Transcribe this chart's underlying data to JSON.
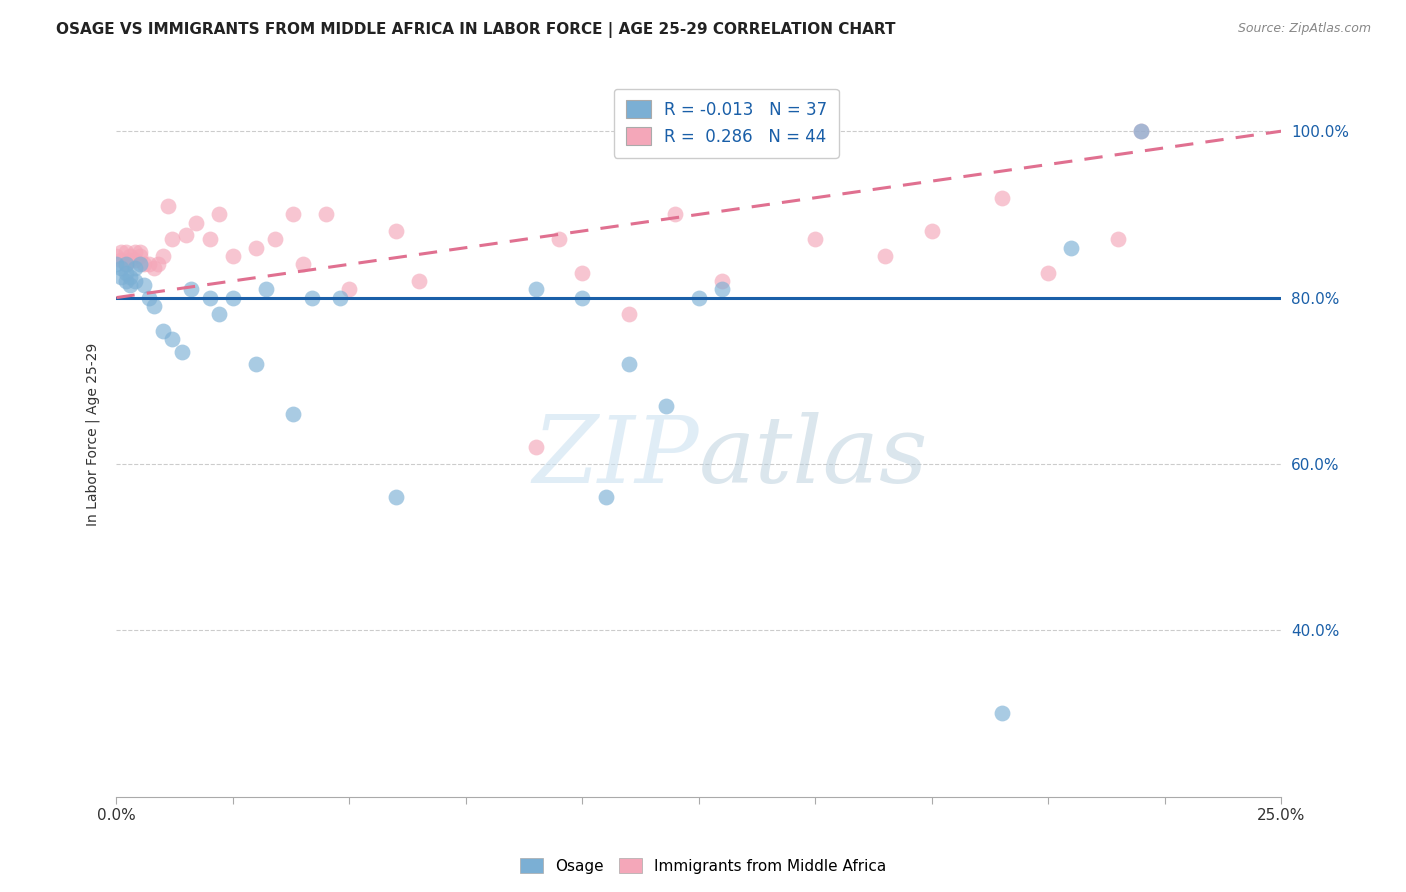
{
  "title": "OSAGE VS IMMIGRANTS FROM MIDDLE AFRICA IN LABOR FORCE | AGE 25-29 CORRELATION CHART",
  "source": "Source: ZipAtlas.com",
  "ylabel": "In Labor Force | Age 25-29",
  "xlim": [
    0.0,
    0.25
  ],
  "ylim": [
    0.2,
    1.07
  ],
  "legend_r_blue": "-0.013",
  "legend_n_blue": "37",
  "legend_r_pink": "0.286",
  "legend_n_pink": "44",
  "blue_color": "#7bafd4",
  "pink_color": "#f4a7b9",
  "line_blue_color": "#1a5fa8",
  "line_pink_color": "#e07090",
  "osage_x": [
    0.0,
    0.001,
    0.001,
    0.002,
    0.002,
    0.002,
    0.003,
    0.003,
    0.004,
    0.004,
    0.005,
    0.006,
    0.007,
    0.008,
    0.01,
    0.012,
    0.014,
    0.016,
    0.02,
    0.022,
    0.025,
    0.03,
    0.032,
    0.038,
    0.042,
    0.048,
    0.06,
    0.09,
    0.1,
    0.105,
    0.11,
    0.118,
    0.125,
    0.13,
    0.19,
    0.205,
    0.22
  ],
  "osage_y": [
    0.84,
    0.835,
    0.825,
    0.83,
    0.82,
    0.84,
    0.825,
    0.815,
    0.835,
    0.82,
    0.84,
    0.815,
    0.8,
    0.79,
    0.76,
    0.75,
    0.735,
    0.81,
    0.8,
    0.78,
    0.8,
    0.72,
    0.81,
    0.66,
    0.8,
    0.8,
    0.56,
    0.81,
    0.8,
    0.56,
    0.72,
    0.67,
    0.8,
    0.81,
    0.3,
    0.86,
    1.0
  ],
  "africa_x": [
    0.0,
    0.001,
    0.001,
    0.002,
    0.002,
    0.003,
    0.003,
    0.004,
    0.004,
    0.005,
    0.005,
    0.006,
    0.007,
    0.008,
    0.009,
    0.01,
    0.011,
    0.012,
    0.015,
    0.017,
    0.02,
    0.022,
    0.025,
    0.03,
    0.034,
    0.038,
    0.04,
    0.045,
    0.05,
    0.06,
    0.065,
    0.09,
    0.095,
    0.1,
    0.11,
    0.12,
    0.13,
    0.15,
    0.165,
    0.175,
    0.19,
    0.2,
    0.215,
    0.22
  ],
  "africa_y": [
    0.85,
    0.855,
    0.845,
    0.84,
    0.855,
    0.85,
    0.845,
    0.855,
    0.845,
    0.85,
    0.855,
    0.84,
    0.84,
    0.835,
    0.84,
    0.85,
    0.91,
    0.87,
    0.875,
    0.89,
    0.87,
    0.9,
    0.85,
    0.86,
    0.87,
    0.9,
    0.84,
    0.9,
    0.81,
    0.88,
    0.82,
    0.62,
    0.87,
    0.83,
    0.78,
    0.9,
    0.82,
    0.87,
    0.85,
    0.88,
    0.92,
    0.83,
    0.87,
    1.0
  ],
  "blue_line_y0": 0.8,
  "blue_line_y1": 0.8,
  "pink_line_y0": 0.8,
  "pink_line_y1": 1.0,
  "yticks": [
    0.4,
    0.6,
    0.8,
    1.0
  ],
  "ytick_labels": [
    "40.0%",
    "60.0%",
    "80.0%",
    "100.0%"
  ],
  "xticks": [
    0.0,
    0.025,
    0.05,
    0.075,
    0.1,
    0.125,
    0.15,
    0.175,
    0.2,
    0.225,
    0.25
  ],
  "background_color": "#ffffff",
  "grid_color": "#cccccc",
  "dot_size": 130,
  "dot_alpha": 0.65
}
